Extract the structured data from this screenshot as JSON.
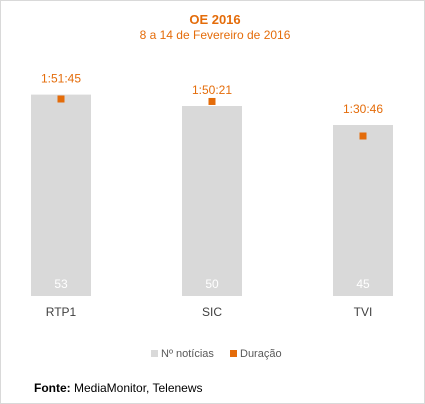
{
  "colors": {
    "accent": "#E46C0A",
    "bar": "#D9D9D9",
    "count_label": "#FFFFFF",
    "axis_text": "#404040",
    "legend_text": "#595959"
  },
  "chart_data": {
    "type": "bar",
    "title": "OE 2016",
    "subtitle": "8 a 14 de Fevereiro de 2016",
    "categories": [
      "RTP1",
      "SIC",
      "TVI"
    ],
    "series": [
      {
        "name": "Nº notícias",
        "type": "bar",
        "values": [
          53,
          50,
          45
        ]
      },
      {
        "name": "Duração",
        "type": "point",
        "values": [
          "1:51:45",
          "1:50:21",
          "1:30:46"
        ],
        "values_seconds": [
          6705,
          6621,
          5446
        ]
      }
    ],
    "legend_position": "bottom",
    "grid": false
  },
  "source": {
    "label": "Fonte:",
    "text": " MediaMonitor, Telenews"
  }
}
